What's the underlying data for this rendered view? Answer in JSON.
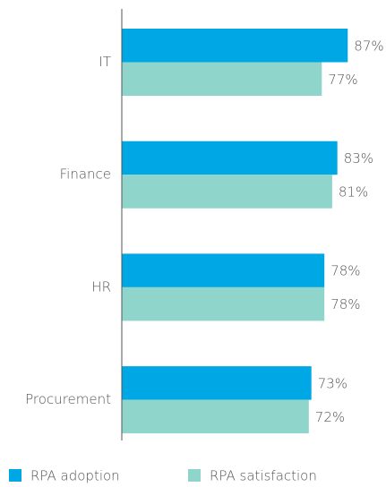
{
  "chart_data": {
    "type": "bar",
    "categories": [
      "IT",
      "Finance",
      "HR",
      "Procurement"
    ],
    "series": [
      {
        "name": "RPA adoption",
        "color": "#00a7e5",
        "values": [
          87,
          83,
          78,
          73
        ],
        "value_labels": [
          "87%",
          "83%",
          "78%",
          "73%"
        ]
      },
      {
        "name": "RPA satisfaction",
        "color": "#8fd5cb",
        "values": [
          77,
          81,
          78,
          72
        ],
        "value_labels": [
          "77%",
          "81%",
          "78%",
          "72%"
        ]
      }
    ],
    "xlim": [
      0,
      100
    ]
  }
}
